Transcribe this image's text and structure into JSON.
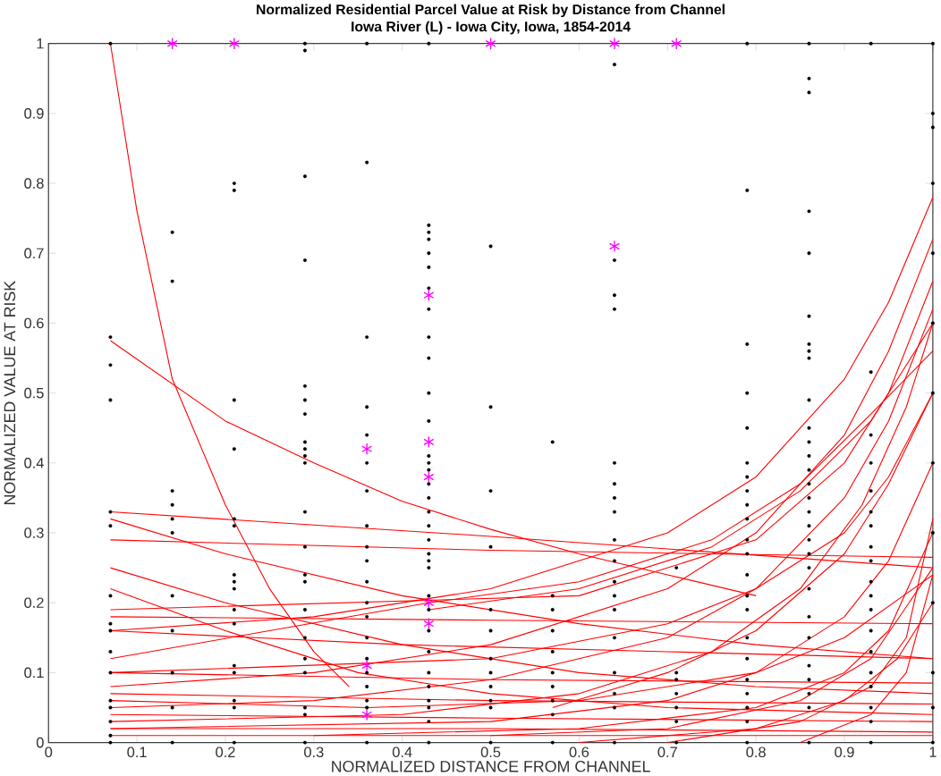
{
  "chart_data": {
    "type": "line",
    "title": "Normalized Residential Parcel Value at Risk by Distance from Channel",
    "subtitle": "Iowa River (L) - Iowa City, Iowa, 1854-2014",
    "xlabel": "NORMALIZED DISTANCE FROM CHANNEL",
    "ylabel": "NORMALIZED VALUE AT RISK",
    "xlim": [
      0,
      1
    ],
    "ylim": [
      0,
      1
    ],
    "xticks": [
      0,
      0.1,
      0.2,
      0.3,
      0.4,
      0.5,
      0.6,
      0.7,
      0.8,
      0.9,
      1
    ],
    "yticks": [
      0,
      0.1,
      0.2,
      0.3,
      0.4,
      0.5,
      0.6,
      0.7,
      0.8,
      0.9,
      1
    ],
    "line_style": "solid",
    "series": [
      {
        "color": "#ff0000",
        "x": [
          0.07,
          0.1,
          0.14,
          0.2,
          0.25,
          0.3,
          0.34
        ],
        "values": [
          1.0,
          0.76,
          0.52,
          0.34,
          0.22,
          0.13,
          0.08
        ]
      },
      {
        "color": "#ff0000",
        "x": [
          0.07,
          0.2,
          0.3,
          0.4,
          0.5,
          0.6,
          0.7,
          0.8
        ],
        "values": [
          0.575,
          0.46,
          0.4,
          0.345,
          0.305,
          0.27,
          0.24,
          0.21
        ]
      },
      {
        "color": "#ff0000",
        "x": [
          0.07,
          0.5,
          1.0
        ],
        "values": [
          0.33,
          0.295,
          0.25
        ]
      },
      {
        "color": "#ff0000",
        "x": [
          0.07,
          0.5,
          1.0
        ],
        "values": [
          0.29,
          0.275,
          0.265
        ]
      },
      {
        "color": "#ff0000",
        "x": [
          0.07,
          0.2,
          0.4,
          0.6,
          0.8,
          1.0
        ],
        "values": [
          0.32,
          0.27,
          0.21,
          0.17,
          0.14,
          0.12
        ]
      },
      {
        "color": "#ff0000",
        "x": [
          0.07,
          0.2,
          0.4,
          0.6,
          0.8,
          1.0
        ],
        "values": [
          0.25,
          0.2,
          0.14,
          0.1,
          0.08,
          0.07
        ]
      },
      {
        "color": "#ff0000",
        "x": [
          0.07,
          0.2,
          0.35,
          0.5,
          0.7,
          1.0
        ],
        "values": [
          0.22,
          0.16,
          0.1,
          0.07,
          0.05,
          0.04
        ]
      },
      {
        "color": "#ff0000",
        "x": [
          0.07,
          0.5,
          1.0
        ],
        "values": [
          0.18,
          0.175,
          0.17
        ]
      },
      {
        "color": "#ff0000",
        "x": [
          0.07,
          0.4,
          0.7,
          1.0
        ],
        "values": [
          0.16,
          0.14,
          0.13,
          0.12
        ]
      },
      {
        "color": "#ff0000",
        "x": [
          0.07,
          0.5,
          1.0
        ],
        "values": [
          0.1,
          0.09,
          0.085
        ]
      },
      {
        "color": "#ff0000",
        "x": [
          0.07,
          0.5,
          1.0
        ],
        "values": [
          0.07,
          0.06,
          0.055
        ]
      },
      {
        "color": "#ff0000",
        "x": [
          0.07,
          0.5,
          1.0
        ],
        "values": [
          0.04,
          0.035,
          0.03
        ]
      },
      {
        "color": "#ff0000",
        "x": [
          0.07,
          0.5,
          1.0
        ],
        "values": [
          0.02,
          0.02,
          0.015
        ]
      },
      {
        "color": "#ff0000",
        "x": [
          0.07,
          0.5,
          1.0
        ],
        "values": [
          0.01,
          0.01,
          0.01
        ]
      },
      {
        "color": "#ff0000",
        "x": [
          0.07,
          0.3,
          0.5,
          0.7,
          0.8,
          0.9,
          0.95,
          1.0
        ],
        "values": [
          0.16,
          0.18,
          0.22,
          0.3,
          0.38,
          0.52,
          0.63,
          0.78
        ]
      },
      {
        "color": "#ff0000",
        "x": [
          0.07,
          0.3,
          0.5,
          0.7,
          0.8,
          0.9,
          0.95,
          1.0
        ],
        "values": [
          0.08,
          0.1,
          0.14,
          0.22,
          0.3,
          0.44,
          0.56,
          0.72
        ]
      },
      {
        "color": "#ff0000",
        "x": [
          0.07,
          0.3,
          0.5,
          0.7,
          0.8,
          0.9,
          0.95,
          1.0
        ],
        "values": [
          0.05,
          0.06,
          0.09,
          0.15,
          0.22,
          0.35,
          0.46,
          0.62
        ]
      },
      {
        "color": "#ff0000",
        "x": [
          0.07,
          0.4,
          0.6,
          0.75,
          0.85,
          0.92,
          0.97,
          1.0
        ],
        "values": [
          0.03,
          0.04,
          0.07,
          0.13,
          0.22,
          0.34,
          0.48,
          0.6
        ]
      },
      {
        "color": "#ff0000",
        "x": [
          0.07,
          0.5,
          0.7,
          0.8,
          0.9,
          0.95,
          1.0
        ],
        "values": [
          0.1,
          0.12,
          0.17,
          0.22,
          0.3,
          0.38,
          0.5
        ]
      },
      {
        "color": "#ff0000",
        "x": [
          0.07,
          0.5,
          0.7,
          0.8,
          0.9,
          0.95,
          1.0
        ],
        "values": [
          0.02,
          0.03,
          0.06,
          0.1,
          0.18,
          0.26,
          0.4
        ]
      },
      {
        "color": "#ff0000",
        "x": [
          0.3,
          0.6,
          0.8,
          0.9,
          0.95,
          1.0
        ],
        "values": [
          0.01,
          0.02,
          0.05,
          0.1,
          0.16,
          0.3
        ]
      },
      {
        "color": "#ff0000",
        "x": [
          0.5,
          0.7,
          0.85,
          0.93,
          1.0
        ],
        "values": [
          0.01,
          0.02,
          0.06,
          0.12,
          0.25
        ]
      },
      {
        "color": "#ff0000",
        "x": [
          0.6,
          0.8,
          0.9,
          0.96,
          1.0
        ],
        "values": [
          0.0,
          0.02,
          0.06,
          0.12,
          0.2
        ]
      },
      {
        "color": "#ff0000",
        "x": [
          0.7,
          0.85,
          0.93,
          0.97,
          1.0
        ],
        "values": [
          0.0,
          0.03,
          0.08,
          0.15,
          0.32
        ]
      },
      {
        "color": "#ff0000",
        "x": [
          0.57,
          0.7,
          0.8,
          0.9,
          0.95,
          1.0
        ],
        "values": [
          0.05,
          0.1,
          0.16,
          0.27,
          0.37,
          0.5
        ]
      },
      {
        "color": "#ff0000",
        "x": [
          0.07,
          0.6,
          0.8,
          0.9,
          0.95,
          1.0
        ],
        "values": [
          0.19,
          0.21,
          0.29,
          0.4,
          0.5,
          0.66
        ]
      },
      {
        "color": "#ff0000",
        "x": [
          0.43,
          0.6,
          0.75,
          0.85,
          0.93,
          1.0
        ],
        "values": [
          0.19,
          0.22,
          0.28,
          0.36,
          0.46,
          0.6
        ]
      },
      {
        "color": "#ff0000",
        "x": [
          0.07,
          0.43,
          0.6,
          0.75,
          0.85,
          0.93,
          1.0
        ],
        "values": [
          0.12,
          0.2,
          0.23,
          0.29,
          0.37,
          0.47,
          0.56
        ]
      },
      {
        "color": "#ff0000",
        "x": [
          0.85,
          0.93,
          0.97,
          1.0
        ],
        "values": [
          0.0,
          0.04,
          0.1,
          0.24
        ]
      },
      {
        "color": "#ff0000",
        "x": [
          0.07,
          0.36,
          0.6,
          0.8,
          0.9,
          1.0
        ],
        "values": [
          0.06,
          0.05,
          0.06,
          0.1,
          0.15,
          0.24
        ]
      },
      {
        "type": "scatter",
        "marker": "circle",
        "color": "#000000",
        "x": [
          0.07,
          0.07,
          0.07,
          0.07,
          0.07,
          0.07,
          0.07,
          0.07,
          0.07,
          0.07,
          0.07,
          0.07,
          0.07,
          0.07,
          0.07,
          0.07,
          0.14,
          0.14,
          0.14,
          0.14,
          0.14,
          0.14,
          0.14,
          0.14,
          0.14,
          0.14,
          0.14,
          0.21,
          0.21,
          0.21,
          0.21,
          0.21,
          0.21,
          0.21,
          0.21,
          0.21,
          0.21,
          0.21,
          0.21,
          0.21,
          0.21,
          0.21,
          0.21,
          0.29,
          0.29,
          0.29,
          0.29,
          0.29,
          0.29,
          0.29,
          0.29,
          0.29,
          0.29,
          0.29,
          0.29,
          0.29,
          0.29,
          0.29,
          0.29,
          0.29,
          0.29,
          0.29,
          0.29,
          0.29,
          0.29,
          0.36,
          0.36,
          0.36,
          0.36,
          0.36,
          0.36,
          0.36,
          0.36,
          0.36,
          0.36,
          0.36,
          0.36,
          0.36,
          0.36,
          0.36,
          0.36,
          0.36,
          0.36,
          0.36,
          0.36,
          0.43,
          0.43,
          0.43,
          0.43,
          0.43,
          0.43,
          0.43,
          0.43,
          0.43,
          0.43,
          0.43,
          0.43,
          0.43,
          0.43,
          0.43,
          0.43,
          0.43,
          0.43,
          0.43,
          0.43,
          0.43,
          0.43,
          0.43,
          0.43,
          0.43,
          0.43,
          0.43,
          0.43,
          0.43,
          0.43,
          0.43,
          0.43,
          0.43,
          0.5,
          0.5,
          0.5,
          0.5,
          0.5,
          0.5,
          0.5,
          0.5,
          0.5,
          0.5,
          0.5,
          0.5,
          0.57,
          0.57,
          0.57,
          0.57,
          0.57,
          0.57,
          0.57,
          0.57,
          0.57,
          0.57,
          0.64,
          0.64,
          0.64,
          0.64,
          0.64,
          0.64,
          0.64,
          0.64,
          0.64,
          0.64,
          0.64,
          0.64,
          0.64,
          0.64,
          0.64,
          0.64,
          0.64,
          0.64,
          0.71,
          0.71,
          0.71,
          0.71,
          0.71,
          0.71,
          0.71,
          0.79,
          0.79,
          0.79,
          0.79,
          0.79,
          0.79,
          0.79,
          0.79,
          0.79,
          0.79,
          0.79,
          0.79,
          0.79,
          0.79,
          0.79,
          0.79,
          0.79,
          0.79,
          0.79,
          0.79,
          0.79,
          0.79,
          0.86,
          0.86,
          0.86,
          0.86,
          0.86,
          0.86,
          0.86,
          0.86,
          0.86,
          0.86,
          0.86,
          0.86,
          0.86,
          0.86,
          0.86,
          0.86,
          0.86,
          0.86,
          0.86,
          0.86,
          0.86,
          0.86,
          0.86,
          0.86,
          0.86,
          0.86,
          0.86,
          0.86,
          0.86,
          0.93,
          0.93,
          0.93,
          0.93,
          0.93,
          0.93,
          0.93,
          0.93,
          0.93,
          0.93,
          0.93,
          0.93,
          0.93,
          0.93,
          0.93,
          0.93,
          0.93,
          0.93,
          0.93,
          1.0,
          1.0,
          1.0,
          1.0,
          1.0,
          1.0,
          1.0,
          1.0,
          1.0,
          1.0,
          1.0,
          1.0,
          1.0
        ],
        "values": [
          1.0,
          0.58,
          0.54,
          0.49,
          0.33,
          0.31,
          0.21,
          0.17,
          0.16,
          0.13,
          0.1,
          0.06,
          0.05,
          0.03,
          0.01,
          0.0,
          0.73,
          0.66,
          0.36,
          0.34,
          0.32,
          0.3,
          0.21,
          0.16,
          0.1,
          0.05,
          0.0,
          0.8,
          0.79,
          0.49,
          0.42,
          0.32,
          0.31,
          0.24,
          0.23,
          0.22,
          0.19,
          0.17,
          0.11,
          0.1,
          0.06,
          0.05,
          0.0,
          1.0,
          0.99,
          0.81,
          0.69,
          0.51,
          0.49,
          0.47,
          0.43,
          0.42,
          0.41,
          0.4,
          0.33,
          0.28,
          0.24,
          0.23,
          0.19,
          0.15,
          0.12,
          0.1,
          0.05,
          0.04,
          0.0,
          1.0,
          0.83,
          0.58,
          0.48,
          0.44,
          0.4,
          0.36,
          0.31,
          0.28,
          0.26,
          0.23,
          0.2,
          0.18,
          0.15,
          0.12,
          0.1,
          0.08,
          0.06,
          0.05,
          0.0,
          1.0,
          0.74,
          0.73,
          0.72,
          0.7,
          0.68,
          0.65,
          0.62,
          0.58,
          0.55,
          0.5,
          0.46,
          0.41,
          0.4,
          0.39,
          0.37,
          0.35,
          0.33,
          0.31,
          0.29,
          0.27,
          0.26,
          0.25,
          0.21,
          0.19,
          0.16,
          0.13,
          0.1,
          0.08,
          0.06,
          0.05,
          0.03,
          0.0,
          0.71,
          0.48,
          0.36,
          0.28,
          0.19,
          0.16,
          0.12,
          0.1,
          0.08,
          0.06,
          0.05,
          0.0,
          0.43,
          0.21,
          0.19,
          0.16,
          0.13,
          0.1,
          0.08,
          0.06,
          0.04,
          0.0,
          0.97,
          0.69,
          0.64,
          0.62,
          0.4,
          0.37,
          0.35,
          0.33,
          0.29,
          0.26,
          0.23,
          0.21,
          0.19,
          0.15,
          0.1,
          0.07,
          0.05,
          0.0,
          0.25,
          0.1,
          0.09,
          0.07,
          0.05,
          0.03,
          0.0,
          1.0,
          0.79,
          0.57,
          0.5,
          0.45,
          0.4,
          0.38,
          0.36,
          0.34,
          0.32,
          0.29,
          0.27,
          0.24,
          0.21,
          0.19,
          0.15,
          0.12,
          0.09,
          0.07,
          0.05,
          0.03,
          0.0,
          1.0,
          0.95,
          0.93,
          0.76,
          0.7,
          0.61,
          0.57,
          0.56,
          0.55,
          0.49,
          0.45,
          0.43,
          0.41,
          0.39,
          0.37,
          0.35,
          0.33,
          0.31,
          0.29,
          0.27,
          0.25,
          0.22,
          0.18,
          0.15,
          0.11,
          0.09,
          0.07,
          0.05,
          0.0,
          1.0,
          0.53,
          0.44,
          0.4,
          0.36,
          0.33,
          0.31,
          0.28,
          0.26,
          0.23,
          0.21,
          0.19,
          0.16,
          0.13,
          0.1,
          0.08,
          0.05,
          0.03,
          0.0,
          1.0,
          0.9,
          0.88,
          0.8,
          0.7,
          0.6,
          0.5,
          0.4,
          0.3,
          0.2,
          0.1,
          0.05,
          0.0
        ]
      },
      {
        "type": "scatter",
        "marker": "cross",
        "color": "#ff00ff",
        "x": [
          0.14,
          0.21,
          0.5,
          0.64,
          0.71,
          0.64,
          0.43,
          0.36,
          0.43,
          0.43,
          0.43,
          0.43,
          0.36,
          0.36
        ],
        "values": [
          1.0,
          1.0,
          1.0,
          1.0,
          1.0,
          0.71,
          0.64,
          0.42,
          0.43,
          0.38,
          0.2,
          0.17,
          0.11,
          0.04
        ]
      }
    ]
  }
}
